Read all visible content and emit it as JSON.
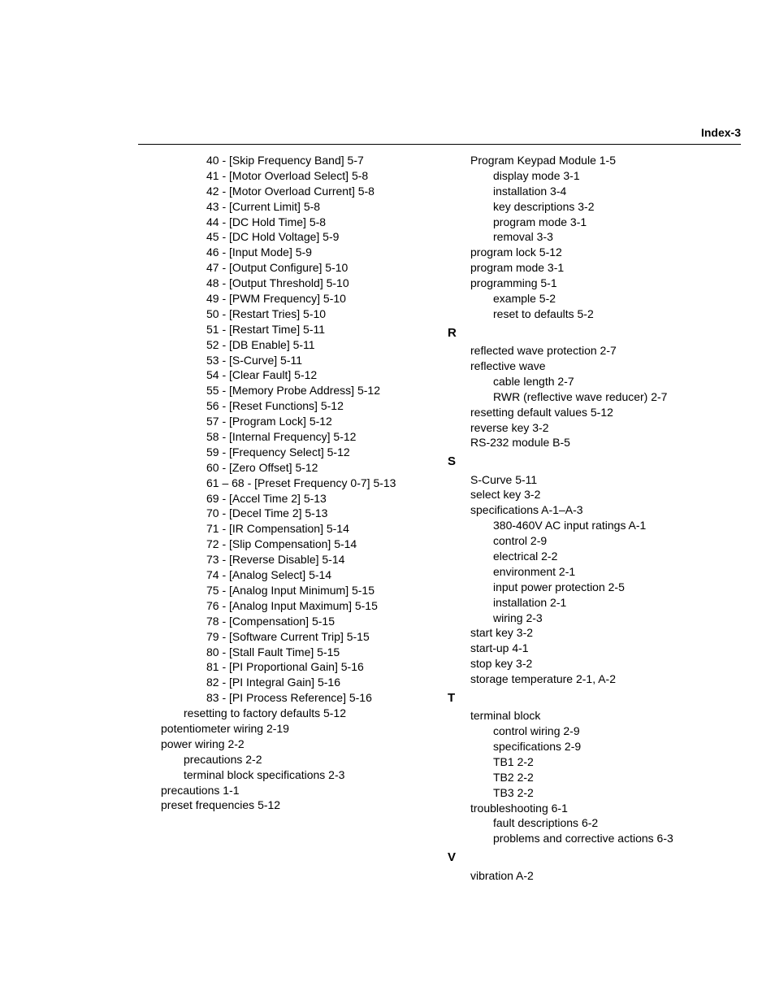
{
  "header": "Index-3",
  "left_column": [
    {
      "indent": 3,
      "text": "40 - [Skip Frequency Band] 5-7"
    },
    {
      "indent": 3,
      "text": "41 - [Motor Overload Select] 5-8"
    },
    {
      "indent": 3,
      "text": "42 - [Motor Overload Current] 5-8"
    },
    {
      "indent": 3,
      "text": "43 - [Current Limit] 5-8"
    },
    {
      "indent": 3,
      "text": "44 - [DC Hold Time] 5-8"
    },
    {
      "indent": 3,
      "text": "45 - [DC Hold Voltage] 5-9"
    },
    {
      "indent": 3,
      "text": "46 - [Input Mode] 5-9"
    },
    {
      "indent": 3,
      "text": "47 - [Output Configure] 5-10"
    },
    {
      "indent": 3,
      "text": "48 - [Output Threshold] 5-10"
    },
    {
      "indent": 3,
      "text": "49 - [PWM Frequency] 5-10"
    },
    {
      "indent": 3,
      "text": "50 - [Restart Tries] 5-10"
    },
    {
      "indent": 3,
      "text": "51 - [Restart Time] 5-11"
    },
    {
      "indent": 3,
      "text": "52 - [DB Enable] 5-11"
    },
    {
      "indent": 3,
      "text": "53 - [S-Curve] 5-11"
    },
    {
      "indent": 3,
      "text": "54 - [Clear Fault] 5-12"
    },
    {
      "indent": 3,
      "text": "55 - [Memory Probe Address] 5-12"
    },
    {
      "indent": 3,
      "text": "56 - [Reset Functions] 5-12"
    },
    {
      "indent": 3,
      "text": "57 - [Program Lock] 5-12"
    },
    {
      "indent": 3,
      "text": "58 - [Internal Frequency] 5-12"
    },
    {
      "indent": 3,
      "text": "59 - [Frequency Select] 5-12"
    },
    {
      "indent": 3,
      "text": "60 - [Zero Offset] 5-12"
    },
    {
      "indent": 3,
      "text": "61 – 68 - [Preset Frequency 0-7] 5-13"
    },
    {
      "indent": 3,
      "text": "69 - [Accel Time 2] 5-13"
    },
    {
      "indent": 3,
      "text": "70 - [Decel Time 2] 5-13"
    },
    {
      "indent": 3,
      "text": "71 - [IR Compensation] 5-14"
    },
    {
      "indent": 3,
      "text": "72 - [Slip Compensation] 5-14"
    },
    {
      "indent": 3,
      "text": "73 - [Reverse Disable] 5-14"
    },
    {
      "indent": 3,
      "text": "74 - [Analog Select] 5-14"
    },
    {
      "indent": 3,
      "text": "75 - [Analog Input Minimum] 5-15"
    },
    {
      "indent": 3,
      "text": "76 - [Analog Input Maximum] 5-15"
    },
    {
      "indent": 3,
      "text": "78 - [Compensation] 5-15"
    },
    {
      "indent": 3,
      "text": "79 - [Software Current Trip] 5-15"
    },
    {
      "indent": 3,
      "text": "80 - [Stall Fault Time] 5-15"
    },
    {
      "indent": 3,
      "text": "81 - [PI Proportional Gain] 5-16"
    },
    {
      "indent": 3,
      "text": "82 - [PI Integral Gain] 5-16"
    },
    {
      "indent": 3,
      "text": "83 - [PI Process Reference] 5-16"
    },
    {
      "indent": 2,
      "text": "resetting to factory defaults 5-12"
    },
    {
      "indent": 1,
      "text": "potentiometer wiring 2-19"
    },
    {
      "indent": 1,
      "text": "power wiring 2-2"
    },
    {
      "indent": 2,
      "text": "precautions 2-2"
    },
    {
      "indent": 2,
      "text": "terminal block specifications 2-3"
    },
    {
      "indent": 1,
      "text": "precautions 1-1"
    },
    {
      "indent": 1,
      "text": "preset frequencies 5-12"
    }
  ],
  "right_column": [
    {
      "indent": 1,
      "text": "Program Keypad Module 1-5"
    },
    {
      "indent": 2,
      "text": "display mode 3-1"
    },
    {
      "indent": 2,
      "text": "installation 3-4"
    },
    {
      "indent": 2,
      "text": "key descriptions 3-2"
    },
    {
      "indent": 2,
      "text": "program mode 3-1"
    },
    {
      "indent": 2,
      "text": "removal 3-3"
    },
    {
      "indent": 1,
      "text": "program lock 5-12"
    },
    {
      "indent": 1,
      "text": "program mode 3-1"
    },
    {
      "indent": 1,
      "text": "programming 5-1"
    },
    {
      "indent": 2,
      "text": "example 5-2"
    },
    {
      "indent": 2,
      "text": "reset to defaults 5-2"
    },
    {
      "letter": "R"
    },
    {
      "indent": 1,
      "text": "reflected wave protection 2-7"
    },
    {
      "indent": 1,
      "text": "reflective wave"
    },
    {
      "indent": 2,
      "text": "cable length 2-7"
    },
    {
      "indent": 2,
      "text": "RWR (reflective wave reducer) 2-7"
    },
    {
      "indent": 1,
      "text": "resetting default values 5-12"
    },
    {
      "indent": 1,
      "text": "reverse key 3-2"
    },
    {
      "indent": 1,
      "text": "RS-232 module B-5"
    },
    {
      "letter": "S"
    },
    {
      "indent": 1,
      "text": "S-Curve 5-11"
    },
    {
      "indent": 1,
      "text": "select key 3-2"
    },
    {
      "indent": 1,
      "text": "specifications A-1–A-3"
    },
    {
      "indent": 2,
      "text": "380-460V AC input ratings A-1"
    },
    {
      "indent": 2,
      "text": "control 2-9"
    },
    {
      "indent": 2,
      "text": "electrical 2-2"
    },
    {
      "indent": 2,
      "text": "environment 2-1"
    },
    {
      "indent": 2,
      "text": "input power protection 2-5"
    },
    {
      "indent": 2,
      "text": "installation 2-1"
    },
    {
      "indent": 2,
      "text": "wiring 2-3"
    },
    {
      "indent": 1,
      "text": "start key 3-2"
    },
    {
      "indent": 1,
      "text": "start-up 4-1"
    },
    {
      "indent": 1,
      "text": "stop key 3-2"
    },
    {
      "indent": 1,
      "text": "storage temperature 2-1, A-2"
    },
    {
      "letter": "T"
    },
    {
      "indent": 1,
      "text": "terminal block"
    },
    {
      "indent": 2,
      "text": "control wiring 2-9"
    },
    {
      "indent": 2,
      "text": "specifications 2-9"
    },
    {
      "indent": 2,
      "text": "TB1 2-2"
    },
    {
      "indent": 2,
      "text": "TB2 2-2"
    },
    {
      "indent": 2,
      "text": "TB3 2-2"
    },
    {
      "indent": 1,
      "text": "troubleshooting 6-1"
    },
    {
      "indent": 2,
      "text": "fault descriptions 6-2"
    },
    {
      "indent": 2,
      "text": "problems and corrective actions 6-3"
    },
    {
      "letter": "V"
    },
    {
      "indent": 1,
      "text": "vibration A-2"
    }
  ]
}
